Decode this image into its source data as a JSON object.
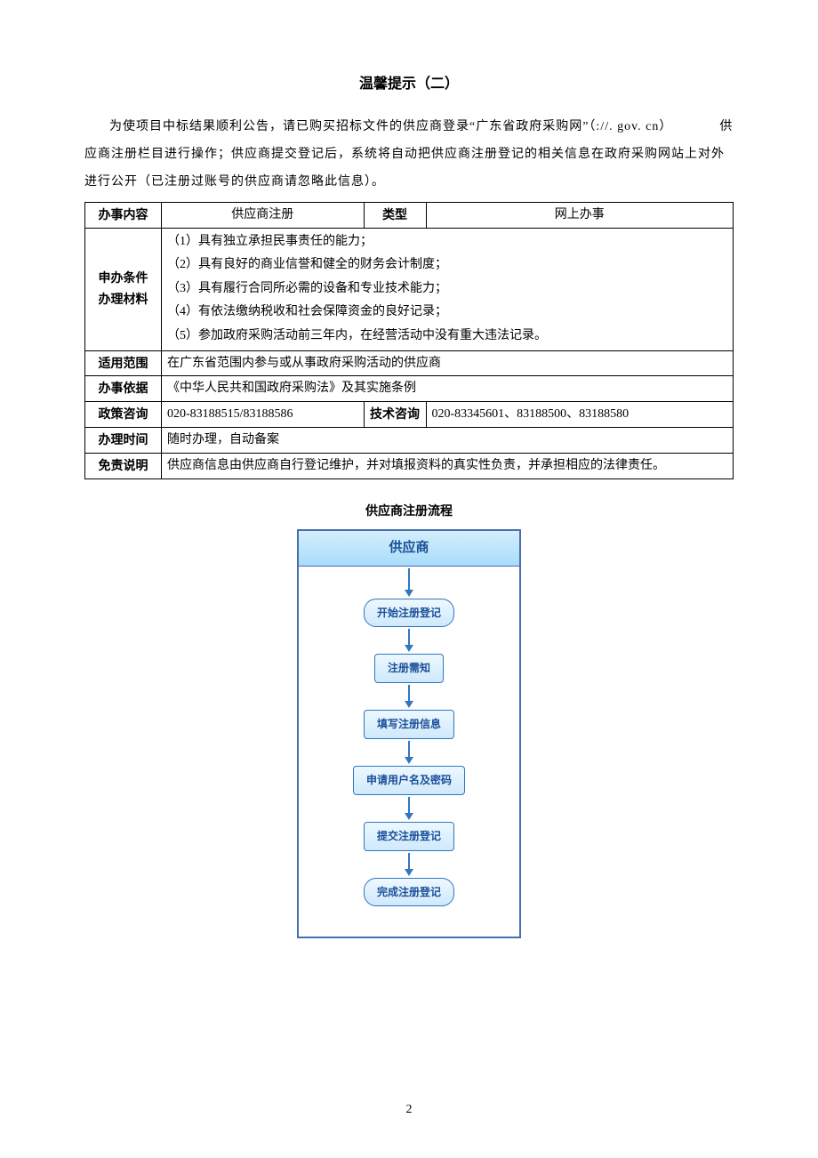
{
  "title": "温馨提示（二）",
  "intro": "为使项目中标结果顺利公告，请已购买招标文件的供应商登录“广东省政府采购网”（://. gov. cn）　　　　供应商注册栏目进行操作；供应商提交登记后，系统将自动把供应商注册登记的相关信息在政府采购网站上对外进行公开（已注册过账号的供应商请忽略此信息）。",
  "table": {
    "row1": {
      "h1": "办事内容",
      "v1": "供应商注册",
      "h2": "类型",
      "v2": "网上办事"
    },
    "conditions": {
      "head1": "申办条件",
      "head2": "办理材料",
      "items": [
        "（1）具有独立承担民事责任的能力；",
        "（2）具有良好的商业信誉和健全的财务会计制度；",
        "（3）具有履行合同所必需的设备和专业技术能力；",
        "（4）有依法缴纳税收和社会保障资金的良好记录；",
        "（5）参加政府采购活动前三年内，在经营活动中没有重大违法记录。"
      ]
    },
    "scope": {
      "h": "适用范围",
      "v": "在广东省范围内参与或从事政府采购活动的供应商"
    },
    "basis": {
      "h": "办事依据",
      "v": "《中华人民共和国政府采购法》及其实施条例"
    },
    "consult": {
      "h1": "政策咨询",
      "v1": "020-83188515/83188586",
      "h2": "技术咨询",
      "v2": "020-83345601、83188500、83188580"
    },
    "time": {
      "h": "办理时间",
      "v": "随时办理，自动备案"
    },
    "disclaimer": {
      "h": "免责说明",
      "v": "供应商信息由供应商自行登记维护，并对填报资料的真实性负责，并承担相应的法律责任。"
    }
  },
  "flow": {
    "title": "供应商注册流程",
    "header": "供应商",
    "nodes": [
      {
        "label": "开始注册登记",
        "shape": "terminator"
      },
      {
        "label": "注册需知",
        "shape": "process"
      },
      {
        "label": "填写注册信息",
        "shape": "process"
      },
      {
        "label": "申请用户名及密码",
        "shape": "process"
      },
      {
        "label": "提交注册登记",
        "shape": "process"
      },
      {
        "label": "完成注册登记",
        "shape": "terminator"
      }
    ],
    "arrow_heights": [
      24,
      18,
      18,
      18,
      18,
      18
    ],
    "colors": {
      "border": "#4a6db0",
      "node_border": "#2f77c0",
      "node_text": "#1a4f99",
      "header_grad_top": "#d4eefc",
      "header_grad_bottom": "#a9dcfa",
      "node_grad_top": "#eef8ff",
      "node_grad_bottom": "#cfe9fb"
    }
  },
  "page_number": "2"
}
